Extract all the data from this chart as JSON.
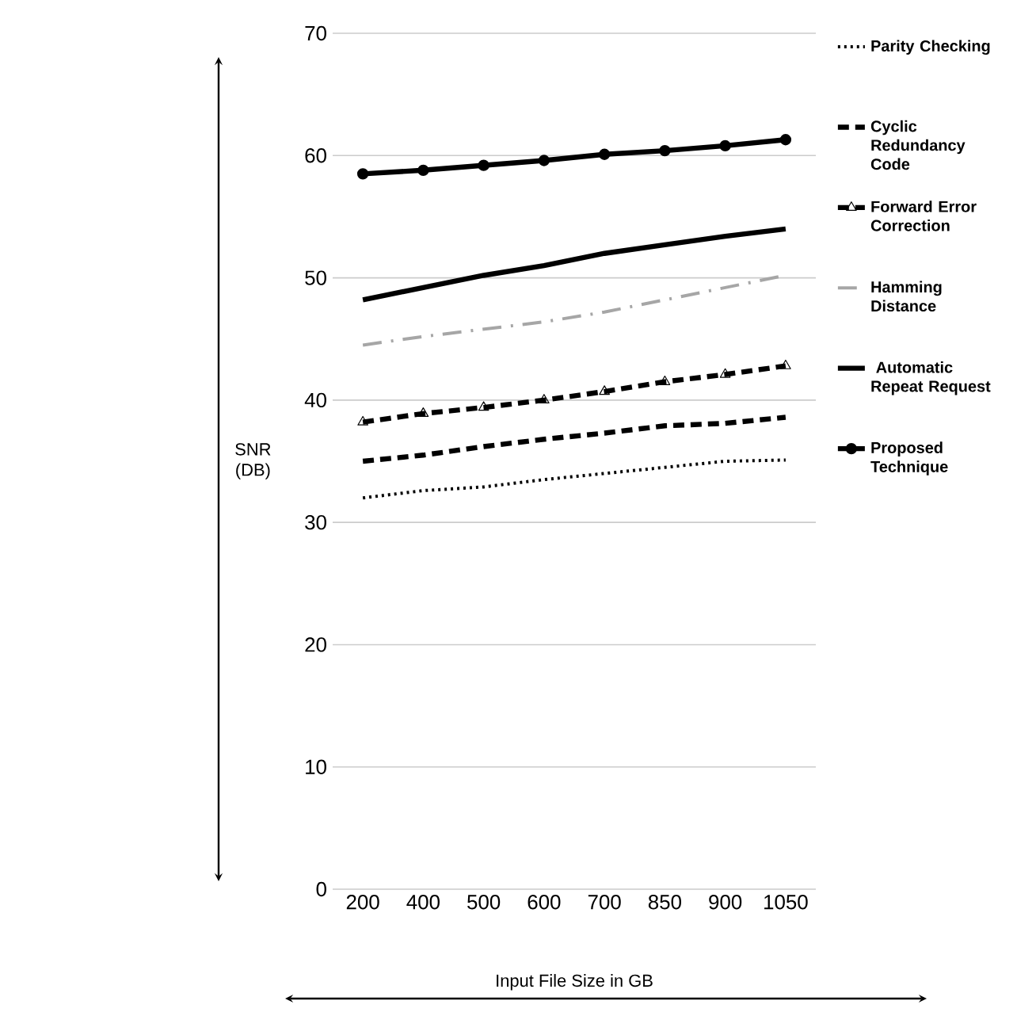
{
  "chart_data": {
    "type": "line",
    "xlabel": "Input File Size in GB",
    "ylabel": "SNR (DB)",
    "categories": [
      "200",
      "400",
      "500",
      "600",
      "700",
      "850",
      "900",
      "1050"
    ],
    "ylim": [
      0,
      70
    ],
    "yticks": [
      0,
      10,
      20,
      30,
      40,
      50,
      60,
      70
    ],
    "grid": "y",
    "legend": "right",
    "series": [
      {
        "name": "Parity Checking",
        "color": "#000000",
        "line_style": "dotted",
        "marker": "none",
        "values": [
          32,
          32.6,
          32.9,
          33.5,
          34,
          34.5,
          35,
          35.1
        ]
      },
      {
        "name": "Cyclic  Redundancy Code",
        "color": "#000000",
        "line_style": "dashed",
        "marker": "none",
        "values": [
          35,
          35.5,
          36.2,
          36.8,
          37.3,
          37.9,
          38.1,
          38.6
        ]
      },
      {
        "name": "Forward Error Correction",
        "color": "#000000",
        "line_style": "dashed",
        "marker": "triangle",
        "values": [
          38.2,
          38.9,
          39.4,
          40,
          40.7,
          41.5,
          42.1,
          42.8
        ]
      },
      {
        "name": "Hamming Distance",
        "color": "#a6a6a6",
        "line_style": "dashdot",
        "marker": "none",
        "values": [
          44.5,
          45.2,
          45.8,
          46.4,
          47.2,
          48.2,
          49.2,
          50.2
        ]
      },
      {
        "name": " Automatic Repeat Request",
        "color": "#000000",
        "line_style": "solid",
        "marker": "none",
        "values": [
          48.2,
          49.2,
          50.2,
          51,
          52,
          52.7,
          53.4,
          54
        ]
      },
      {
        "name": "Proposed  Technique",
        "color": "#000000",
        "line_style": "solid",
        "marker": "circle",
        "values": [
          58.5,
          58.8,
          59.2,
          59.6,
          60.1,
          60.4,
          60.8,
          61.3
        ]
      }
    ]
  }
}
